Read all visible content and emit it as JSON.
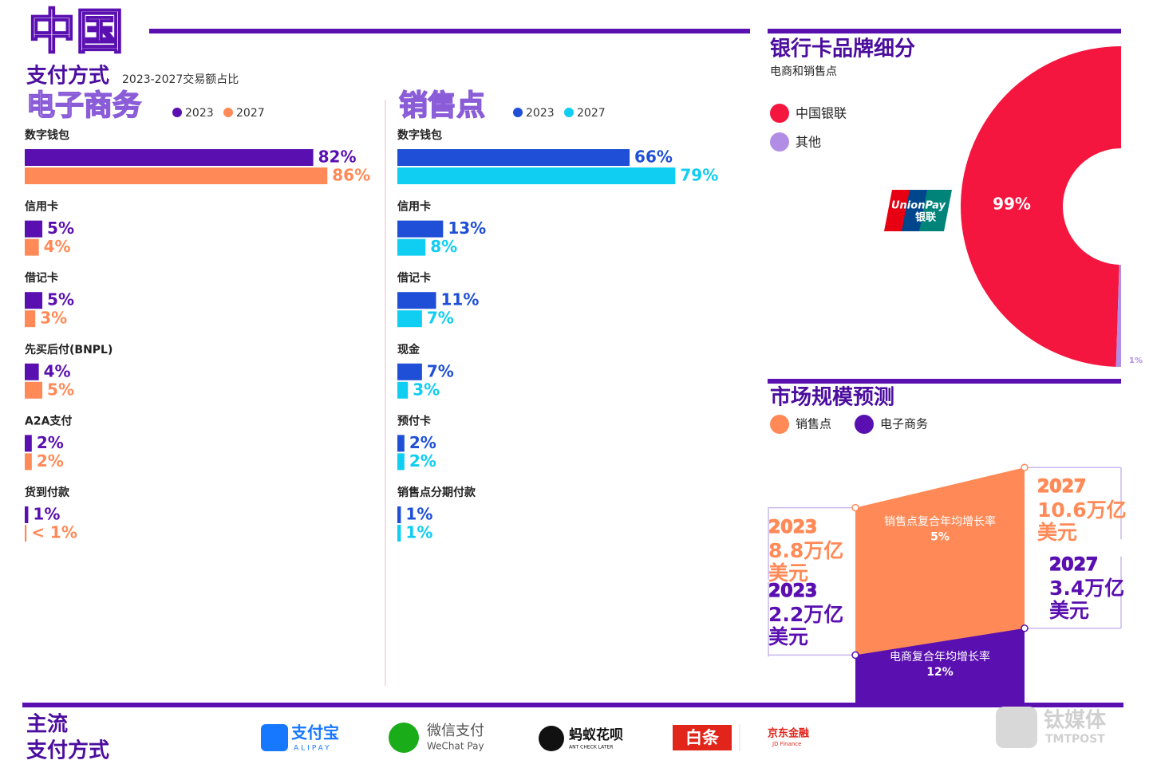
{
  "header": {
    "title": "中国",
    "subtitle": "支付方式",
    "note": "2023-2027交易额占比"
  },
  "chart_data": [
    {
      "type": "bar",
      "orientation": "horizontal",
      "title": "电子商务",
      "categories": [
        "数字钱包",
        "信用卡",
        "借记卡",
        "先买后付(BNPL)",
        "A2A支付",
        "货到付款"
      ],
      "series": [
        {
          "name": "2023",
          "color": "#5a10b0",
          "values": [
            82,
            5,
            5,
            4,
            2,
            1
          ],
          "value_labels": [
            "82%",
            "5%",
            "5%",
            "4%",
            "2%",
            "1%"
          ]
        },
        {
          "name": "2027",
          "color": "#ff8a57",
          "values": [
            86,
            4,
            3,
            5,
            2,
            0.5
          ],
          "value_labels": [
            "86%",
            "4%",
            "3%",
            "5%",
            "2%",
            "< 1%"
          ]
        }
      ]
    },
    {
      "type": "bar",
      "orientation": "horizontal",
      "title": "销售点",
      "categories": [
        "数字钱包",
        "信用卡",
        "借记卡",
        "现金",
        "预付卡",
        "销售点分期付款"
      ],
      "series": [
        {
          "name": "2023",
          "color": "#1f4fd6",
          "values": [
            66,
            13,
            11,
            7,
            2,
            1
          ],
          "value_labels": [
            "66%",
            "13%",
            "11%",
            "7%",
            "2%",
            "1%"
          ]
        },
        {
          "name": "2027",
          "color": "#10cdf2",
          "values": [
            79,
            8,
            7,
            3,
            2,
            1
          ],
          "value_labels": [
            "79%",
            "8%",
            "7%",
            "3%",
            "2%",
            "1%"
          ]
        }
      ]
    },
    {
      "type": "pie",
      "title": "银行卡品牌细分",
      "subtitle": "电商和销售点",
      "categories": [
        "中国银联",
        "其他"
      ],
      "values": [
        99,
        1
      ],
      "value_labels": [
        "99%",
        "1%"
      ],
      "colors": [
        "#f5163f",
        "#b28de6"
      ]
    },
    {
      "type": "area",
      "title": "市场规模预测",
      "categories": [
        "2023",
        "2027"
      ],
      "series": [
        {
          "name": "销售点",
          "color": "#ff8a57",
          "values": [
            8.8,
            10.6
          ],
          "value_labels": [
            "8.8万亿美元",
            "10.6万亿美元"
          ]
        },
        {
          "name": "电子商务",
          "color": "#5a10b0",
          "values": [
            2.2,
            3.4
          ],
          "value_labels": [
            "2.2万亿美元",
            "3.4万亿美元"
          ]
        }
      ],
      "annotations": [
        {
          "text": "销售点复合年均增长率",
          "value": "5%"
        },
        {
          "text": "电商复合年均增长率",
          "value": "12%"
        }
      ]
    }
  ],
  "unionpay": {
    "name": "UnionPay",
    "sub": "银联"
  },
  "footer": {
    "title_lines": [
      "主流",
      "支付方式"
    ],
    "logos": [
      {
        "name": "支付宝",
        "sub": "ALIPAY"
      },
      {
        "name": "微信支付",
        "sub": "WeChat Pay"
      },
      {
        "name": "蚂蚁花呗",
        "sub": "ANT CHECK LATER"
      },
      {
        "name": "白条"
      },
      {
        "name": "京东金融",
        "sub": "JD Finance"
      }
    ]
  },
  "watermark": {
    "name": "钛媒体",
    "sub": "TMTPOST"
  }
}
